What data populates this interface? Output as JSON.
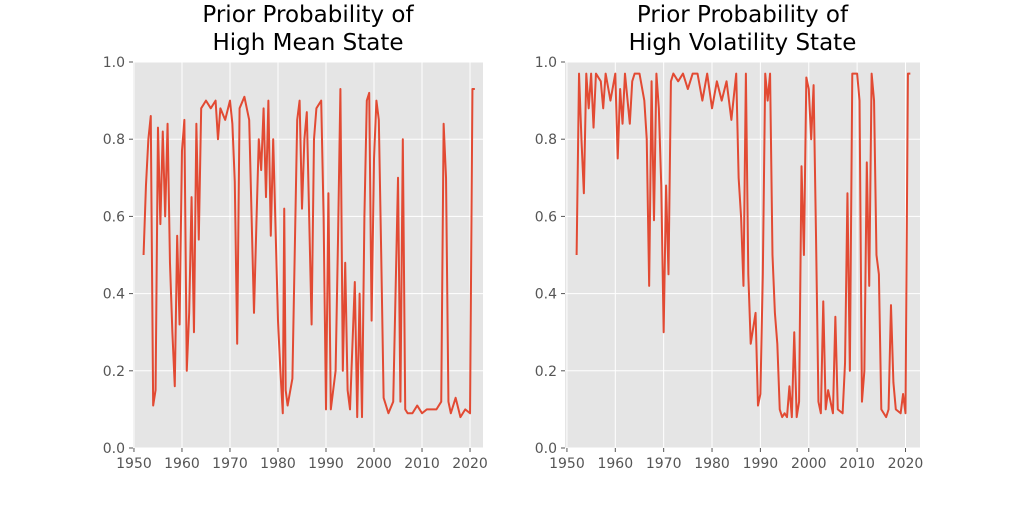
{
  "chart_data": [
    {
      "type": "line",
      "title": [
        "Prior Probability of",
        "High Mean State"
      ],
      "x": [
        1952,
        1952.5,
        1953,
        1953.5,
        1954,
        1954.5,
        1955,
        1955.5,
        1956,
        1956.5,
        1957,
        1957.5,
        1958,
        1958.5,
        1959,
        1959.5,
        1960,
        1960.5,
        1961,
        1961.5,
        1962,
        1962.5,
        1963,
        1963.5,
        1964,
        1965,
        1966,
        1967,
        1967.5,
        1968,
        1969,
        1970,
        1970.5,
        1971,
        1971.5,
        1972,
        1973,
        1974,
        1975,
        1975.5,
        1976,
        1976.5,
        1977,
        1977.5,
        1978,
        1978.5,
        1979,
        1980,
        1980.5,
        1981,
        1981.3,
        1981.6,
        1982,
        1983,
        1984,
        1984.5,
        1985,
        1985.5,
        1986,
        1987,
        1987.5,
        1988,
        1989,
        1989.5,
        1990,
        1990.5,
        1991,
        1992,
        1992.5,
        1993,
        1993.5,
        1994,
        1994.5,
        1995,
        1996,
        1996.5,
        1997,
        1997.5,
        1998,
        1998.5,
        1999,
        1999.5,
        2000,
        2000.5,
        2001,
        2001.5,
        2002,
        2003,
        2004,
        2005,
        2005.5,
        2006,
        2006.5,
        2007,
        2008,
        2009,
        2010,
        2011,
        2012,
        2013,
        2014,
        2014.5,
        2015,
        2015.5,
        2016,
        2017,
        2018,
        2019,
        2020,
        2020.5,
        2021
      ],
      "series": [
        {
          "color": "#e24a33",
          "values": [
            0.5,
            0.68,
            0.8,
            0.86,
            0.11,
            0.15,
            0.83,
            0.58,
            0.82,
            0.6,
            0.84,
            0.48,
            0.3,
            0.16,
            0.55,
            0.32,
            0.77,
            0.85,
            0.2,
            0.35,
            0.65,
            0.3,
            0.84,
            0.54,
            0.88,
            0.9,
            0.88,
            0.9,
            0.8,
            0.88,
            0.85,
            0.9,
            0.84,
            0.69,
            0.27,
            0.88,
            0.91,
            0.85,
            0.35,
            0.58,
            0.8,
            0.72,
            0.88,
            0.65,
            0.9,
            0.55,
            0.8,
            0.33,
            0.2,
            0.09,
            0.62,
            0.15,
            0.11,
            0.18,
            0.85,
            0.9,
            0.62,
            0.8,
            0.87,
            0.32,
            0.8,
            0.88,
            0.9,
            0.6,
            0.1,
            0.66,
            0.1,
            0.2,
            0.54,
            0.93,
            0.2,
            0.48,
            0.15,
            0.1,
            0.43,
            0.08,
            0.4,
            0.08,
            0.6,
            0.9,
            0.92,
            0.33,
            0.75,
            0.9,
            0.85,
            0.5,
            0.13,
            0.09,
            0.12,
            0.7,
            0.12,
            0.8,
            0.1,
            0.09,
            0.09,
            0.11,
            0.09,
            0.1,
            0.1,
            0.1,
            0.12,
            0.84,
            0.7,
            0.12,
            0.09,
            0.13,
            0.08,
            0.1,
            0.09,
            0.93,
            0.93
          ]
        }
      ],
      "xlim": [
        1949.8,
        2022.7
      ],
      "xticks": [
        1950,
        1960,
        1970,
        1980,
        1990,
        2000,
        2010,
        2020
      ],
      "ylim": [
        0,
        1
      ],
      "yticks": [
        {
          "value": 0,
          "label": "0.0"
        },
        0.2,
        0.4,
        0.6,
        0.8,
        {
          "value": 1,
          "label": "1.0"
        }
      ],
      "grid": true
    },
    {
      "type": "line",
      "title": [
        "Prior Probability of",
        "High Volatility State"
      ],
      "x": [
        1952,
        1952.5,
        1953,
        1953.5,
        1954,
        1954.5,
        1955,
        1955.5,
        1956,
        1957,
        1957.5,
        1958,
        1959,
        1960,
        1960.5,
        1961,
        1961.5,
        1962,
        1963,
        1963.5,
        1964,
        1965,
        1966,
        1966.5,
        1967,
        1967.5,
        1968,
        1968.5,
        1969,
        1969.5,
        1970,
        1970.5,
        1971,
        1971.5,
        1972,
        1973,
        1974,
        1975,
        1976,
        1977,
        1978,
        1979,
        1980,
        1981,
        1982,
        1983,
        1984,
        1985,
        1985.5,
        1986,
        1986.5,
        1987,
        1987.5,
        1988,
        1989,
        1989.5,
        1990,
        1990.5,
        1991,
        1991.5,
        1992,
        1992.5,
        1993,
        1993.5,
        1994,
        1994.5,
        1995,
        1995.5,
        1996,
        1996.5,
        1997,
        1997.5,
        1998,
        1998.5,
        1999,
        1999.5,
        2000,
        2000.5,
        2001,
        2001.5,
        2002,
        2002.5,
        2003,
        2003.5,
        2004,
        2005,
        2005.5,
        2006,
        2007,
        2007.5,
        2008,
        2008.5,
        2009,
        2010,
        2010.5,
        2011,
        2011.5,
        2012,
        2012.5,
        2013,
        2013.5,
        2014,
        2014.5,
        2015,
        2016,
        2016.5,
        2017,
        2017.5,
        2018,
        2019,
        2019.5,
        2020,
        2020.5,
        2021
      ],
      "series": [
        {
          "color": "#e24a33",
          "values": [
            0.5,
            0.97,
            0.8,
            0.66,
            0.97,
            0.88,
            0.97,
            0.83,
            0.97,
            0.95,
            0.88,
            0.97,
            0.9,
            0.97,
            0.75,
            0.93,
            0.84,
            0.97,
            0.84,
            0.95,
            0.97,
            0.97,
            0.9,
            0.8,
            0.42,
            0.95,
            0.59,
            0.97,
            0.88,
            0.68,
            0.3,
            0.68,
            0.45,
            0.95,
            0.97,
            0.95,
            0.97,
            0.93,
            0.97,
            0.97,
            0.9,
            0.97,
            0.88,
            0.95,
            0.9,
            0.95,
            0.85,
            0.97,
            0.7,
            0.6,
            0.42,
            0.97,
            0.45,
            0.27,
            0.35,
            0.11,
            0.14,
            0.45,
            0.97,
            0.9,
            0.97,
            0.5,
            0.35,
            0.27,
            0.1,
            0.08,
            0.09,
            0.08,
            0.16,
            0.08,
            0.3,
            0.08,
            0.12,
            0.73,
            0.5,
            0.96,
            0.93,
            0.8,
            0.94,
            0.55,
            0.12,
            0.09,
            0.38,
            0.1,
            0.15,
            0.09,
            0.34,
            0.1,
            0.09,
            0.22,
            0.66,
            0.2,
            0.97,
            0.97,
            0.9,
            0.12,
            0.2,
            0.74,
            0.42,
            0.97,
            0.9,
            0.5,
            0.45,
            0.1,
            0.08,
            0.1,
            0.37,
            0.17,
            0.1,
            0.09,
            0.14,
            0.09,
            0.97,
            0.97
          ]
        }
      ],
      "xlim": [
        1949.6,
        2023
      ],
      "xticks": [
        1950,
        1960,
        1970,
        1980,
        1990,
        2000,
        2010,
        2020
      ],
      "ylim": [
        0,
        1
      ],
      "yticks": [
        {
          "value": 0,
          "label": "0.0"
        },
        0.2,
        0.4,
        0.6,
        0.8,
        {
          "value": 1,
          "label": "1.0"
        }
      ],
      "grid": true
    }
  ]
}
